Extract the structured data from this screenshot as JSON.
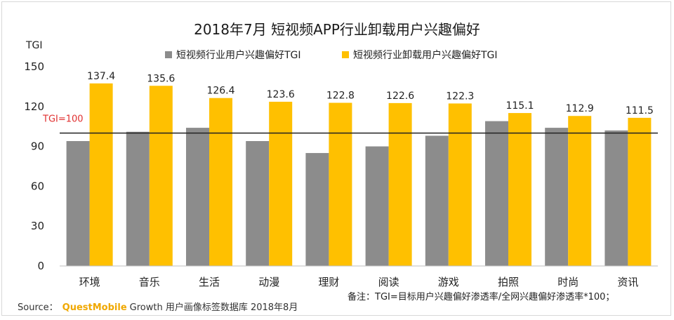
{
  "chart_data": {
    "type": "bar",
    "title": "2018年7月 短视频APP行业卸载用户兴趣偏好",
    "ylabel": "TGI",
    "ylim": [
      0,
      150
    ],
    "yticks": [
      0,
      30,
      60,
      90,
      120,
      150
    ],
    "reference_line": {
      "value": 100,
      "label": "TGI=100",
      "color": "#e03030"
    },
    "categories": [
      "环境",
      "音乐",
      "生活",
      "动漫",
      "理财",
      "阅读",
      "游戏",
      "拍照",
      "时尚",
      "资讯"
    ],
    "series": [
      {
        "name": "短视频行业用户兴趣偏好TGI",
        "color": "#8c8c8c",
        "values": [
          94,
          101,
          104,
          94,
          85,
          90,
          98,
          109,
          104,
          102
        ],
        "show_labels": false
      },
      {
        "name": "短视频行业卸载用户兴趣偏好TGI",
        "color": "#ffc000",
        "values": [
          137.4,
          135.6,
          126.4,
          123.6,
          122.8,
          122.6,
          122.3,
          115.1,
          112.9,
          111.5
        ],
        "show_labels": true
      }
    ],
    "legend_position": "top-center",
    "grid": false
  },
  "footer": {
    "source_label": "Source：",
    "source_brand": "QuestMobile",
    "source_text": "Growth 用户画像标签数据库 2018年8月",
    "note": "备注：TGI=目标用户兴趣偏好渗透率/全网兴趣偏好渗透率*100；"
  }
}
